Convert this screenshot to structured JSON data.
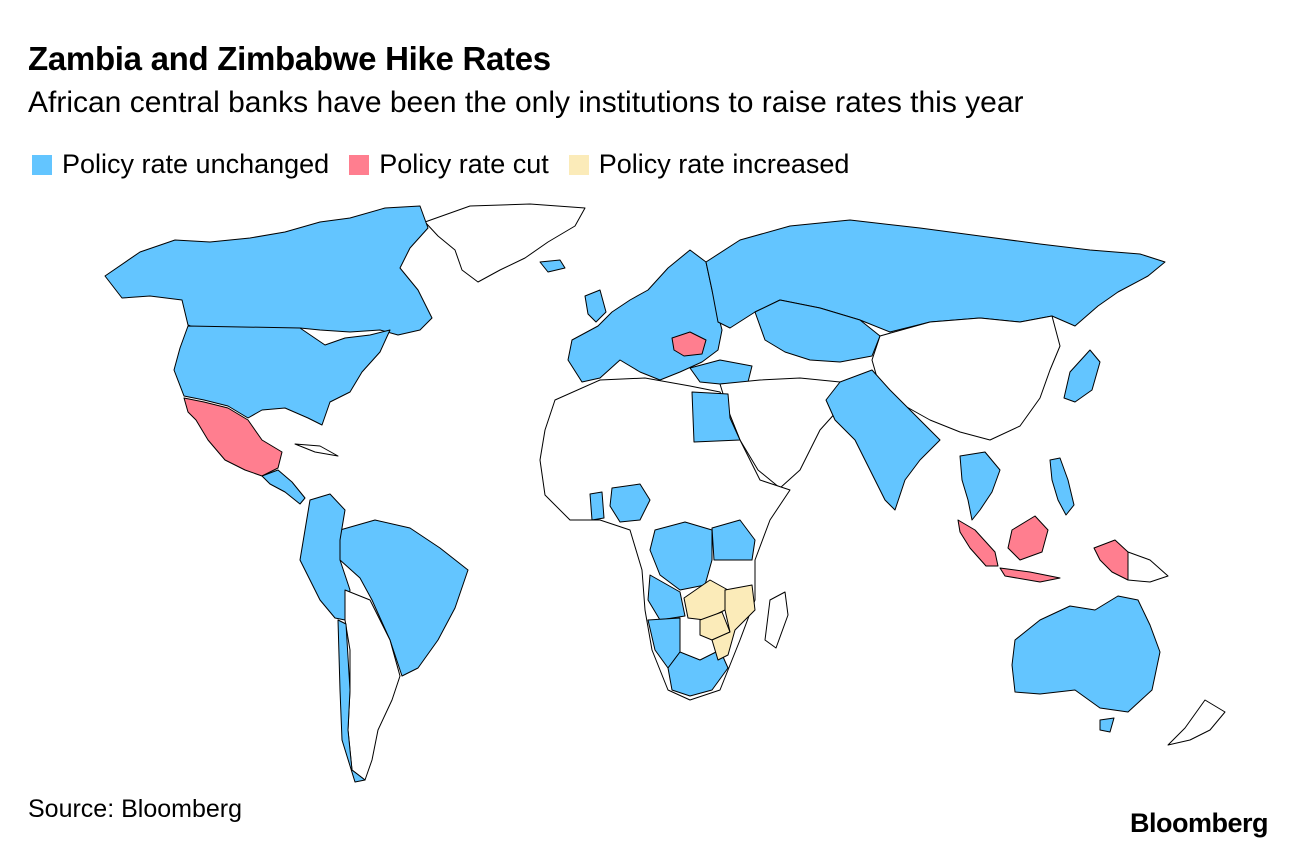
{
  "title": "Zambia and Zimbabwe Hike Rates",
  "subtitle": "African central banks have been the only institutions to raise rates this year",
  "legend": {
    "unchanged": {
      "label": "Policy rate unchanged",
      "color": "#63c5ff"
    },
    "cut": {
      "label": "Policy rate cut",
      "color": "#ff7e8f"
    },
    "increased": {
      "label": "Policy rate increased",
      "color": "#fbebb9"
    }
  },
  "source": "Source: Bloomberg",
  "brand": "Bloomberg"
}
